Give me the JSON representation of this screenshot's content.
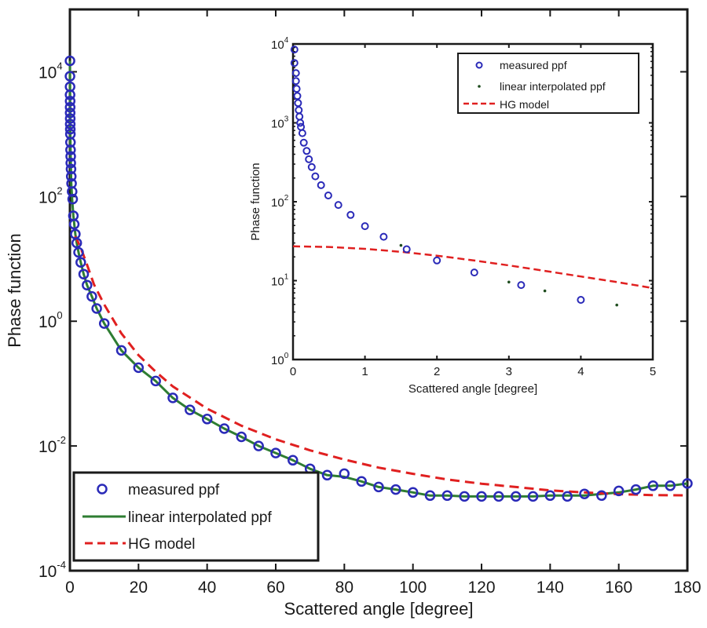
{
  "colors": {
    "measured": "#2a2ab8",
    "interpolated": "#2e7d32",
    "hg": "#e02020",
    "axis": "#1a1a1a"
  },
  "chart_data": [
    {
      "id": "main",
      "type": "line",
      "xlabel": "Scattered angle [degree]",
      "ylabel": "Phase function",
      "xlim": [
        0,
        180
      ],
      "ylim": [
        0.0001,
        100000
      ],
      "yscale": "log",
      "grid": false,
      "legend_position": "bottom-left",
      "x_ticks": [
        {
          "value": 0,
          "label": "0"
        },
        {
          "value": 20,
          "label": "20"
        },
        {
          "value": 40,
          "label": "40"
        },
        {
          "value": 60,
          "label": "60"
        },
        {
          "value": 80,
          "label": "80"
        },
        {
          "value": 100,
          "label": "100"
        },
        {
          "value": 120,
          "label": "120"
        },
        {
          "value": 140,
          "label": "140"
        },
        {
          "value": 160,
          "label": "160"
        },
        {
          "value": 180,
          "label": "180"
        }
      ],
      "y_ticks": [
        {
          "value": 10000,
          "base": "10",
          "exp": "4"
        },
        {
          "value": 100,
          "base": "10",
          "exp": "2"
        },
        {
          "value": 1,
          "base": "10",
          "exp": "0"
        },
        {
          "value": 0.01,
          "base": "10",
          "exp": "-2"
        },
        {
          "value": 0.0001,
          "base": "10",
          "exp": "-4"
        }
      ],
      "series": [
        {
          "name": "measured ppf",
          "style": "circle",
          "x": [
            0.02,
            0.03,
            0.04,
            0.05,
            0.06,
            0.07,
            0.08,
            0.09,
            0.1,
            0.11,
            0.13,
            0.15,
            0.19,
            0.22,
            0.26,
            0.31,
            0.39,
            0.49,
            0.63,
            0.8,
            1.0,
            1.26,
            1.58,
            2.0,
            2.52,
            3.17,
            4.0,
            5.0,
            6.4,
            7.8,
            10,
            15,
            20,
            25,
            30,
            35,
            40,
            45,
            50,
            55,
            60,
            65,
            70,
            75,
            80,
            85,
            90,
            95,
            100,
            105,
            110,
            115,
            120,
            125,
            130,
            135,
            140,
            145,
            150,
            155,
            160,
            165,
            170,
            175,
            180
          ],
          "y": [
            15000,
            8500,
            5750,
            4270,
            3390,
            2700,
            2190,
            1780,
            1450,
            1200,
            1000,
            740,
            560,
            440,
            345,
            275,
            210,
            162,
            120,
            91,
            49,
            36,
            25,
            18,
            12.7,
            8.8,
            5.7,
            3.8,
            2.5,
            1.6,
            0.92,
            0.34,
            0.18,
            0.11,
            0.059,
            0.038,
            0.027,
            0.019,
            0.014,
            0.01,
            0.0077,
            0.0059,
            0.0043,
            0.0034,
            0.0036,
            0.0027,
            0.0022,
            0.002,
            0.0018,
            0.0016,
            0.0016,
            0.00155,
            0.00155,
            0.00155,
            0.00155,
            0.00155,
            0.0016,
            0.00155,
            0.0017,
            0.0016,
            0.0019,
            0.002,
            0.0023,
            0.0023,
            0.0025
          ]
        },
        {
          "name": "linear interpolated ppf",
          "style": "solid-line",
          "x": [
            0.02,
            0.1,
            0.2,
            0.4,
            0.63,
            1.0,
            1.58,
            2.0,
            2.52,
            3.17,
            4.0,
            5.0,
            6.4,
            7.8,
            10,
            15,
            20,
            25,
            30,
            35,
            40,
            45,
            50,
            55,
            60,
            65,
            70,
            75,
            80,
            85,
            90,
            95,
            100,
            105,
            110,
            115,
            120,
            125,
            130,
            135,
            140,
            145,
            150,
            155,
            160,
            165,
            170,
            175,
            180
          ],
          "y": [
            15000,
            1200,
            470,
            160,
            91,
            49,
            25,
            18,
            12.7,
            8.8,
            5.7,
            3.8,
            2.5,
            1.6,
            0.92,
            0.34,
            0.18,
            0.11,
            0.059,
            0.038,
            0.027,
            0.019,
            0.014,
            0.01,
            0.0077,
            0.0059,
            0.0043,
            0.0034,
            0.0032,
            0.0027,
            0.0022,
            0.002,
            0.0018,
            0.0016,
            0.0016,
            0.00155,
            0.00155,
            0.00155,
            0.00155,
            0.00155,
            0.0016,
            0.0016,
            0.0016,
            0.0017,
            0.0018,
            0.002,
            0.0023,
            0.0023,
            0.0025
          ]
        },
        {
          "name": "HG model",
          "style": "dashed-line",
          "x": [
            1.5,
            2,
            3,
            4,
            5,
            7,
            10,
            15,
            20,
            25,
            30,
            40,
            50,
            60,
            70,
            80,
            90,
            100,
            110,
            120,
            130,
            140,
            150,
            160,
            170,
            180
          ],
          "y": [
            23,
            20.7,
            15.6,
            11.3,
            8.05,
            3.9,
            1.85,
            0.639,
            0.286,
            0.155,
            0.09,
            0.0396,
            0.0211,
            0.0128,
            0.0085,
            0.00605,
            0.0045,
            0.00358,
            0.0029,
            0.00248,
            0.0022,
            0.00194,
            0.0018,
            0.00169,
            0.00163,
            0.00161
          ]
        }
      ],
      "legend": [
        {
          "label": "measured ppf",
          "style": "circle"
        },
        {
          "label": "linear interpolated ppf",
          "style": "solid-line"
        },
        {
          "label": "HG model",
          "style": "dashed-line"
        }
      ]
    },
    {
      "id": "inset",
      "type": "scatter",
      "xlabel": "Scattered angle [degree]",
      "ylabel": "Phase function",
      "xlim": [
        0,
        5
      ],
      "ylim": [
        1,
        10000
      ],
      "yscale": "log",
      "grid": false,
      "legend_position": "top-right",
      "x_ticks": [
        {
          "value": 0,
          "label": "0"
        },
        {
          "value": 1,
          "label": "1"
        },
        {
          "value": 2,
          "label": "2"
        },
        {
          "value": 3,
          "label": "3"
        },
        {
          "value": 4,
          "label": "4"
        },
        {
          "value": 5,
          "label": "5"
        }
      ],
      "y_ticks": [
        {
          "value": 10000,
          "base": "10",
          "exp": "4"
        },
        {
          "value": 1000,
          "base": "10",
          "exp": "3"
        },
        {
          "value": 100,
          "base": "10",
          "exp": "2"
        },
        {
          "value": 10,
          "base": "10",
          "exp": "1"
        },
        {
          "value": 1,
          "base": "10",
          "exp": "0"
        }
      ],
      "series": [
        {
          "name": "measured ppf",
          "style": "circle",
          "x": [
            0.02,
            0.02,
            0.04,
            0.04,
            0.05,
            0.06,
            0.07,
            0.08,
            0.09,
            0.1,
            0.11,
            0.13,
            0.15,
            0.19,
            0.22,
            0.26,
            0.31,
            0.39,
            0.49,
            0.63,
            0.8,
            1.0,
            1.26,
            1.58,
            2.0,
            2.52,
            3.17,
            4.0
          ],
          "y": [
            8500,
            5750,
            4270,
            3390,
            2700,
            2190,
            1780,
            1450,
            1200,
            1000,
            890,
            740,
            560,
            440,
            345,
            275,
            210,
            162,
            120,
            91,
            68,
            49,
            36,
            25,
            18,
            12.7,
            8.8,
            5.7
          ]
        },
        {
          "name": "linear interpolated ppf",
          "style": "dot",
          "x": [
            1.5,
            3.0,
            3.5,
            4.5
          ],
          "y": [
            28,
            9.6,
            7.4,
            4.9
          ]
        },
        {
          "name": "HG model",
          "style": "dashed-line",
          "x": [
            0,
            0.5,
            1,
            1.5,
            2,
            2.5,
            3,
            3.5,
            4,
            4.5,
            5
          ],
          "y": [
            27.2,
            26.7,
            25.3,
            23.2,
            20.7,
            18.1,
            15.6,
            13.3,
            11.3,
            9.6,
            8.05
          ]
        }
      ],
      "legend": [
        {
          "label": "measured ppf",
          "style": "circle"
        },
        {
          "label": "linear interpolated ppf",
          "style": "dot"
        },
        {
          "label": "HG model",
          "style": "dashed-line"
        }
      ]
    }
  ]
}
